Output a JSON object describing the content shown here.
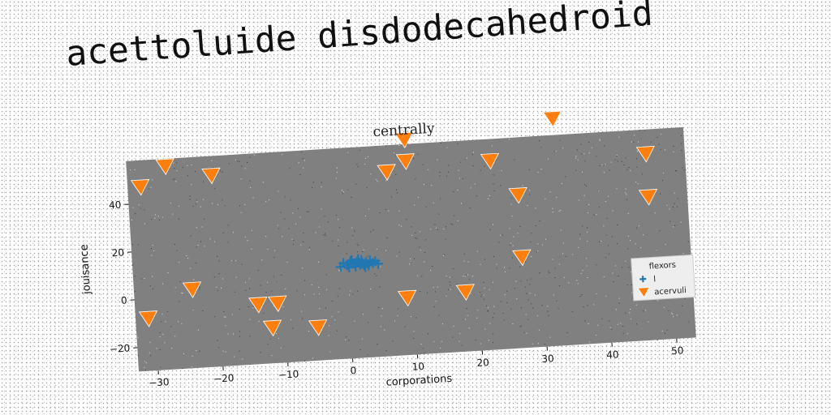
{
  "main_title": "acettoluide disdodecahedroid",
  "colors": {
    "plot_background": "#808080",
    "series_1": "#1f77b4",
    "series_2": "#ff7f0e"
  },
  "chart_data": {
    "type": "scatter",
    "title": "centrally",
    "xlabel": "corporations",
    "ylabel": "jouisance",
    "xlim": [
      -33,
      53
    ],
    "ylim": [
      -30,
      58
    ],
    "xticks": [
      -30,
      -20,
      -10,
      0,
      10,
      20,
      30,
      40,
      50
    ],
    "yticks": [
      -20,
      0,
      20,
      40
    ],
    "grid": false,
    "legend": {
      "title": "flexors",
      "position": "lower-right"
    },
    "series": [
      {
        "name": "l",
        "marker": "plus",
        "points": [
          [
            -1.0,
            8.5
          ],
          [
            -0.5,
            10.0
          ],
          [
            0.0,
            9.0
          ],
          [
            0.3,
            8.0
          ],
          [
            0.6,
            10.5
          ],
          [
            1.0,
            9.5
          ],
          [
            1.3,
            8.2
          ],
          [
            1.6,
            10.2
          ],
          [
            2.0,
            9.0
          ],
          [
            2.3,
            10.8
          ],
          [
            2.6,
            8.6
          ],
          [
            3.0,
            9.8
          ],
          [
            3.3,
            8.4
          ],
          [
            3.6,
            10.4
          ],
          [
            4.0,
            9.2
          ],
          [
            4.4,
            10.0
          ],
          [
            4.8,
            8.8
          ],
          [
            1.8,
            11.2
          ],
          [
            2.8,
            7.8
          ],
          [
            0.8,
            11.0
          ]
        ]
      },
      {
        "name": "acervuli",
        "marker": "triangle-down",
        "points": [
          [
            -31,
            -8
          ],
          [
            -31,
            47
          ],
          [
            -27,
            55
          ],
          [
            -24,
            3
          ],
          [
            -20,
            50
          ],
          [
            -14,
            -5
          ],
          [
            -12,
            -15
          ],
          [
            -11,
            -5
          ],
          [
            -5,
            -16
          ],
          [
            7,
            47
          ],
          [
            10,
            60
          ],
          [
            10,
            51
          ],
          [
            9,
            -6
          ],
          [
            18,
            -5
          ],
          [
            23,
            49
          ],
          [
            27,
            34
          ],
          [
            27,
            8
          ],
          [
            33,
            65
          ],
          [
            47,
            48
          ],
          [
            47,
            30
          ]
        ]
      }
    ]
  }
}
